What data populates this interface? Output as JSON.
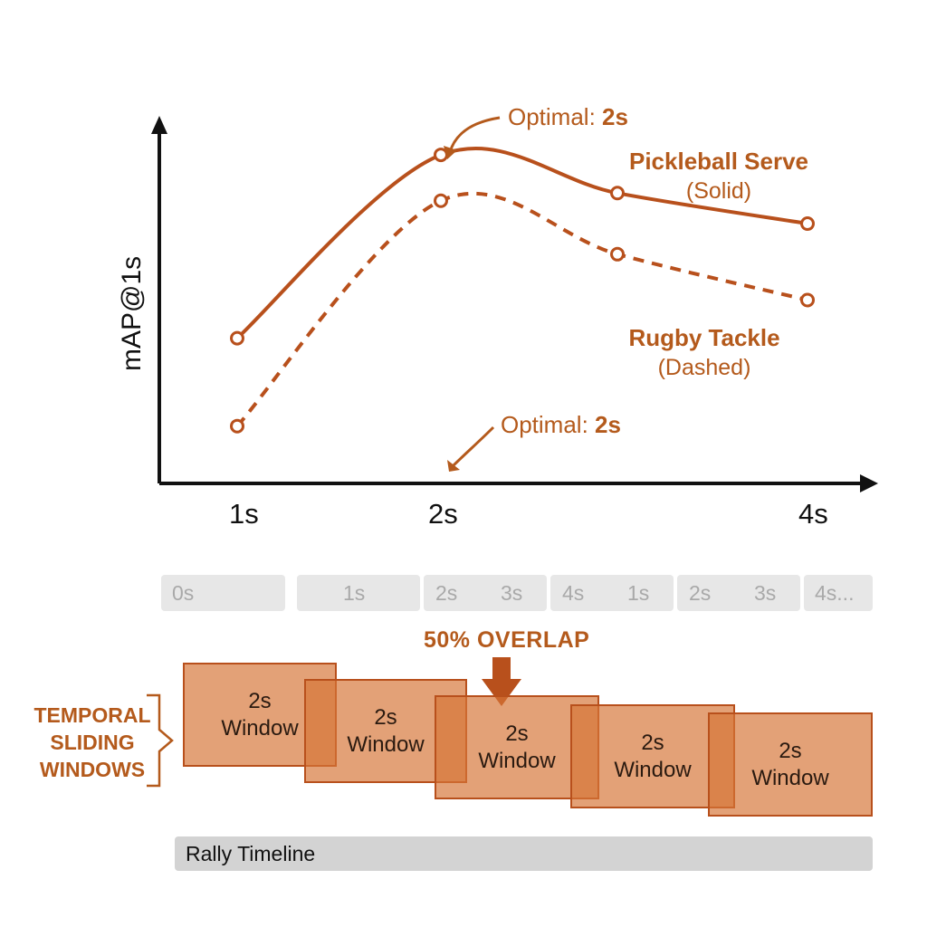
{
  "chart_data": {
    "type": "line",
    "ylabel": "mAP@1s",
    "x_ticks": [
      "1s",
      "2s",
      "4s"
    ],
    "series": [
      {
        "name": "Pickleball Serve",
        "style_label": "(Solid)",
        "line": "solid",
        "points": [
          [
            1,
            0.38
          ],
          [
            2,
            0.86
          ],
          [
            3,
            0.76
          ],
          [
            4,
            0.68
          ]
        ]
      },
      {
        "name": "Rugby Tackle",
        "style_label": "(Dashed)",
        "line": "dashed",
        "points": [
          [
            1,
            0.15
          ],
          [
            2,
            0.74
          ],
          [
            3,
            0.6
          ],
          [
            4,
            0.48
          ]
        ]
      }
    ],
    "annotations": [
      {
        "prefix": "Optimal: ",
        "value": "2s"
      },
      {
        "prefix": "Optimal: ",
        "value": "2s"
      }
    ],
    "color": "#b8501c"
  },
  "ruler": {
    "segments": [
      {
        "labels": [
          "0s"
        ]
      },
      {
        "labels": [
          "1s"
        ]
      },
      {
        "labels": [
          "2s",
          "3s"
        ]
      },
      {
        "labels": [
          "4s",
          "1s"
        ]
      },
      {
        "labels": [
          "2s",
          "3s"
        ]
      },
      {
        "labels": [
          "4s..."
        ]
      }
    ]
  },
  "overlap_label": "50% OVERLAP",
  "side_label": [
    "TEMPORAL",
    "SLIDING",
    "WINDOWS"
  ],
  "windows": [
    {
      "line1": "2s",
      "line2": "Window"
    },
    {
      "line1": "2s",
      "line2": "Window"
    },
    {
      "line1": "2s",
      "line2": "Window"
    },
    {
      "line1": "2s",
      "line2": "Window"
    },
    {
      "line1": "2s",
      "line2": "Window"
    }
  ],
  "timeline_label": "Rally Timeline",
  "colors": {
    "accent": "#b45a1c",
    "window_fill": "#d67537",
    "ruler": "#e7e7e7",
    "timeline": "#d3d3d3"
  }
}
